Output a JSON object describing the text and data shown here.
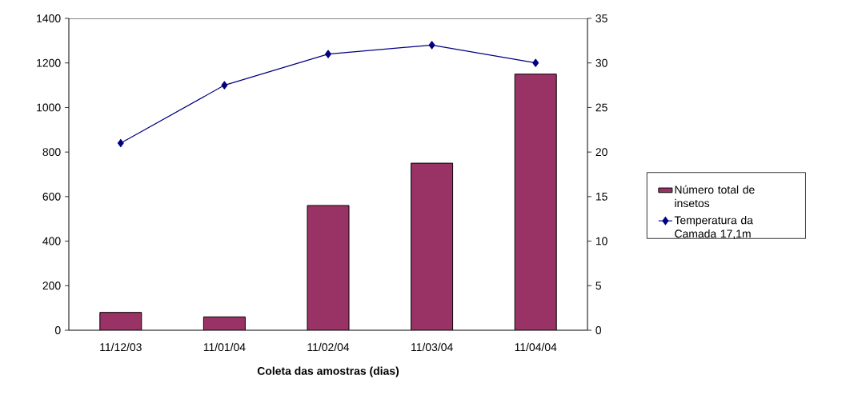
{
  "chart_data": {
    "type": "bar",
    "xlabel": "Coleta das amostras (dias)",
    "categories": [
      "11/12/03",
      "11/01/04",
      "11/02/04",
      "11/03/04",
      "11/04/04"
    ],
    "series": [
      {
        "name": "Número total de insetos",
        "axis": "y",
        "color": "#993366",
        "values": [
          80,
          60,
          560,
          750,
          1150
        ]
      },
      {
        "name": "Temperatura da Camada 17,1m",
        "type": "line",
        "axis": "y2",
        "color": "#000080",
        "values": [
          21,
          27.5,
          31,
          32,
          30
        ],
        "marker": "diamond",
        "line_style": "solid"
      }
    ],
    "ylim": [
      0,
      1400
    ],
    "yticks": [
      0,
      200,
      400,
      600,
      800,
      1000,
      1200,
      1400
    ],
    "y2lim": [
      0,
      35
    ],
    "y2ticks": [
      0,
      5,
      10,
      15,
      20,
      25,
      30,
      35
    ],
    "legend": "right",
    "grid": false
  }
}
